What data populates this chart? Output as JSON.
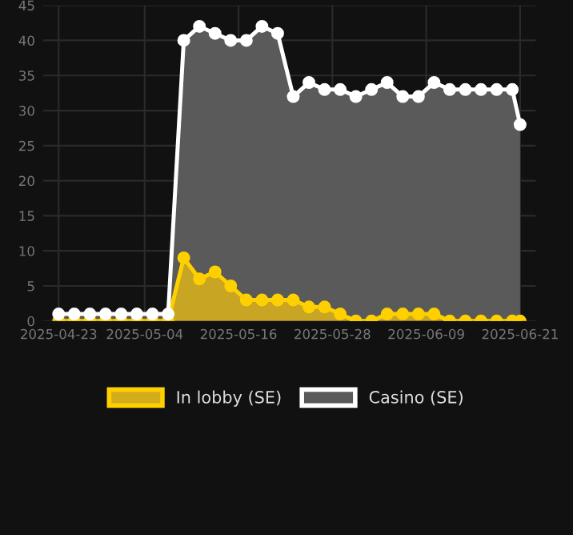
{
  "chart_data": {
    "type": "area",
    "x": [
      "2025-04-23",
      "2025-04-25",
      "2025-04-27",
      "2025-04-29",
      "2025-05-01",
      "2025-05-03",
      "2025-05-05",
      "2025-05-07",
      "2025-05-09",
      "2025-05-11",
      "2025-05-13",
      "2025-05-15",
      "2025-05-17",
      "2025-05-19",
      "2025-05-21",
      "2025-05-23",
      "2025-05-25",
      "2025-05-27",
      "2025-05-29",
      "2025-05-31",
      "2025-06-02",
      "2025-06-04",
      "2025-06-06",
      "2025-06-08",
      "2025-06-10",
      "2025-06-12",
      "2025-06-14",
      "2025-06-16",
      "2025-06-18",
      "2025-06-20",
      "2025-06-21"
    ],
    "series": [
      {
        "name": "In lobby (SE)",
        "color": "#ffd000",
        "values": [
          0,
          0,
          0,
          0,
          0,
          0,
          0,
          0,
          9,
          6,
          7,
          5,
          3,
          3,
          3,
          3,
          2,
          2,
          1,
          0,
          0,
          1,
          1,
          1,
          1,
          0,
          0,
          0,
          0,
          0,
          0
        ]
      },
      {
        "name": "Casino (SE)",
        "color": "#ffffff",
        "values": [
          1,
          1,
          1,
          1,
          1,
          1,
          1,
          1,
          40,
          42,
          41,
          40,
          40,
          42,
          41,
          32,
          34,
          33,
          33,
          32,
          33,
          34,
          32,
          32,
          34,
          33,
          33,
          33,
          33,
          33,
          28
        ]
      }
    ],
    "xlim": [
      "2025-04-21",
      "2025-06-23"
    ],
    "xticks": [
      "2025-04-23",
      "2025-05-04",
      "2025-05-16",
      "2025-05-28",
      "2025-06-09",
      "2025-06-21"
    ],
    "ylim": [
      0,
      45
    ],
    "yticks": [
      0,
      5,
      10,
      15,
      20,
      25,
      30,
      35,
      40,
      45
    ],
    "grid": true,
    "legend": "bottom",
    "marker": "circle",
    "line_style": "solid"
  }
}
